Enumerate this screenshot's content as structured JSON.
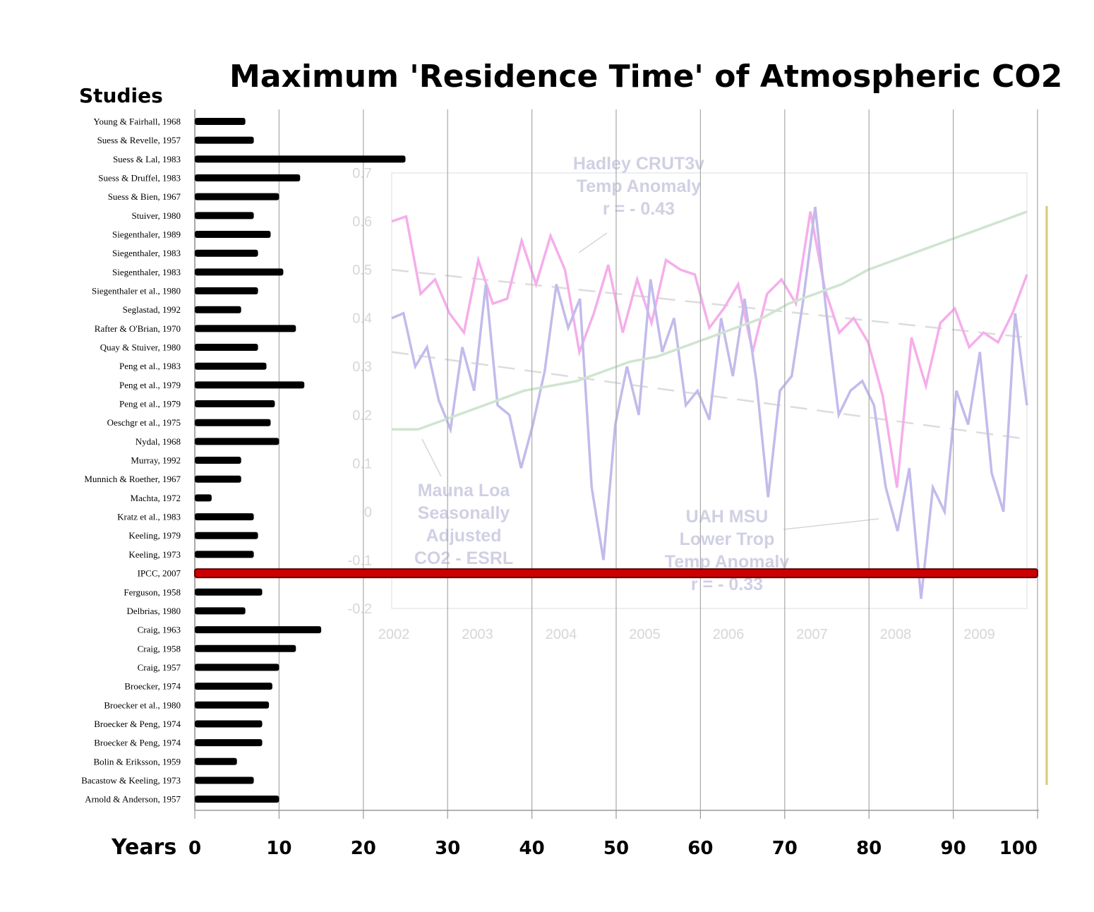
{
  "chart_data": {
    "type": "bar",
    "orientation": "horizontal",
    "title": "Maximum 'Residence Time' of Atmospheric CO2",
    "category_axis_label": "Studies",
    "xlabel": "Years",
    "xlim": [
      0,
      100
    ],
    "x_ticks": [
      "0",
      "10",
      "20",
      "30",
      "40",
      "50",
      "60",
      "70",
      "80",
      "90",
      "100"
    ],
    "grid": "vertical",
    "bar_color": "#000000",
    "highlight_color": "#cc0000",
    "highlight_category": "IPCC, 2007",
    "categories": [
      "Young & Fairhall, 1968",
      "Suess & Revelle, 1957",
      "Suess & Lal, 1983",
      "Suess & Druffel, 1983",
      "Suess & Bien, 1967",
      "Stuiver, 1980",
      "Siegenthaler, 1989",
      "Siegenthaler, 1983",
      "Siegenthaler, 1983",
      "Siegenthaler et al., 1980",
      "Seglastad, 1992",
      "Rafter & O'Brian, 1970",
      "Quay & Stuiver, 1980",
      "Peng et al., 1983",
      "Peng et al., 1979",
      "Peng et al., 1979",
      "Oeschgr et al., 1975",
      "Nydal, 1968",
      "Murray, 1992",
      "Munnich & Roether, 1967",
      "Machta, 1972",
      "Kratz et al., 1983",
      "Keeling, 1979",
      "Keeling, 1973",
      "IPCC, 2007",
      "Ferguson, 1958",
      "Delbrias, 1980",
      "Craig, 1963",
      "Craig, 1958",
      "Craig, 1957",
      "Broecker, 1974",
      "Broecker et al., 1980",
      "Broecker & Peng, 1974",
      "Broecker & Peng, 1974",
      "Bolin & Eriksson, 1959",
      "Bacastow & Keeling, 1973",
      "Arnold & Anderson, 1957"
    ],
    "values": [
      6,
      7,
      25,
      12.5,
      10,
      7,
      9,
      7.5,
      10.5,
      7.5,
      5.5,
      12,
      7.5,
      8.5,
      13,
      9.5,
      9,
      10,
      5.5,
      5.5,
      2,
      7,
      7.5,
      7,
      100,
      8,
      6,
      15,
      12,
      10,
      9.2,
      8.8,
      8,
      8,
      5,
      7,
      10
    ],
    "background_overlay": {
      "type": "line",
      "x_ticks": [
        "2002",
        "2003",
        "2004",
        "2005",
        "2006",
        "2007",
        "2008",
        "2009"
      ],
      "y_ticks": [
        "0.7",
        "0.6",
        "0.5",
        "0.4",
        "0.3",
        "0.2",
        "0.1",
        "0",
        "-0.1",
        "-0.2"
      ],
      "annotations": [
        {
          "lines": [
            "Hadley CRUT3v",
            "Temp Anomaly",
            "r = - 0.43"
          ]
        },
        {
          "lines": [
            "Mauna Loa",
            "Seasonally",
            "Adjusted",
            "CO2 - ESRL"
          ]
        },
        {
          "lines": [
            "UAH MSU",
            "Lower Trop",
            "Temp Anomaly",
            "r = - 0.33"
          ]
        }
      ],
      "series": [
        {
          "color": "#f4a0e8",
          "values": [
            0.6,
            0.61,
            0.45,
            0.48,
            0.41,
            0.37,
            0.52,
            0.43,
            0.44,
            0.56,
            0.47,
            0.57,
            0.5,
            0.33,
            0.41,
            0.51,
            0.37,
            0.48,
            0.39,
            0.52,
            0.5,
            0.49,
            0.38,
            0.42,
            0.47,
            0.33,
            0.45,
            0.48,
            0.43,
            0.62,
            0.46,
            0.37,
            0.4,
            0.35,
            0.24,
            0.05,
            0.36,
            0.26,
            0.39,
            0.42,
            0.34,
            0.37,
            0.35,
            0.41,
            0.49
          ]
        },
        {
          "color": "#b8b0e8",
          "values": [
            0.4,
            0.41,
            0.3,
            0.34,
            0.23,
            0.17,
            0.34,
            0.25,
            0.47,
            0.22,
            0.2,
            0.09,
            0.18,
            0.29,
            0.47,
            0.38,
            0.44,
            0.05,
            -0.1,
            0.18,
            0.3,
            0.2,
            0.48,
            0.33,
            0.4,
            0.22,
            0.25,
            0.19,
            0.4,
            0.28,
            0.44,
            0.27,
            0.03,
            0.25,
            0.28,
            0.44,
            0.63,
            0.4,
            0.2,
            0.25,
            0.27,
            0.22,
            0.05,
            -0.04,
            0.09,
            -0.18,
            0.05,
            0.0,
            0.25,
            0.18,
            0.33,
            0.08,
            0.0,
            0.41,
            0.22
          ]
        },
        {
          "color": "#c8e0c8",
          "values": [
            0.17,
            0.17,
            0.19,
            0.21,
            0.23,
            0.25,
            0.26,
            0.27,
            0.29,
            0.31,
            0.32,
            0.34,
            0.36,
            0.38,
            0.4,
            0.43,
            0.45,
            0.47,
            0.5,
            0.52,
            0.54,
            0.56,
            0.58,
            0.6,
            0.62
          ]
        }
      ]
    }
  }
}
